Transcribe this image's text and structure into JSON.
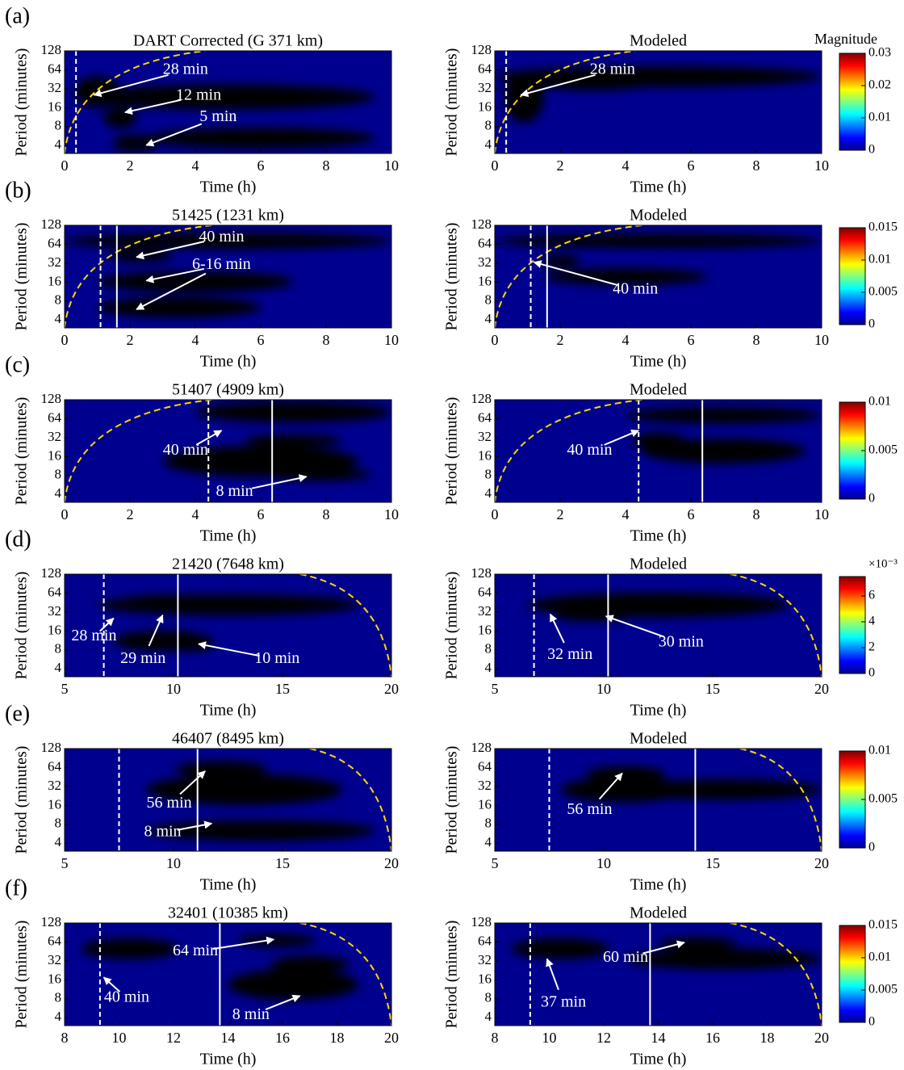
{
  "panel_labels": [
    "(a)",
    "(b)",
    "(c)",
    "(d)",
    "(e)",
    "(f)"
  ],
  "chart_data": [
    {
      "type": "heatmap",
      "title": "DART Corrected (G 371 km)",
      "xlabel": "Time (h)",
      "ylabel": "Period (minutes)",
      "xlim": [
        0,
        10
      ],
      "xticks": [
        0,
        2,
        4,
        6,
        8,
        10
      ],
      "ylim": [
        3,
        128
      ],
      "yticks": [
        4,
        8,
        16,
        32,
        64,
        128
      ],
      "ylog": true,
      "vlines": [
        {
          "x": 0.35,
          "style": "dashed"
        }
      ],
      "annotations": [
        "28 min",
        "12 min",
        "5 min"
      ]
    },
    {
      "type": "heatmap",
      "title": "Modeled",
      "xlabel": "Time (h)",
      "ylabel": "Period (minutes)",
      "xlim": [
        0,
        10
      ],
      "xticks": [
        0,
        2,
        4,
        6,
        8,
        10
      ],
      "ylim": [
        3,
        128
      ],
      "yticks": [
        4,
        8,
        16,
        32,
        64,
        128
      ],
      "ylog": true,
      "vlines": [
        {
          "x": 0.35,
          "style": "dashed"
        }
      ],
      "annotations": [
        "28 min"
      ],
      "colorbar": {
        "title": "Magnitude",
        "lim": [
          0,
          0.03
        ],
        "ticks": [
          0,
          0.01,
          0.02,
          0.03
        ]
      }
    },
    {
      "type": "heatmap",
      "title": "51425 (1231 km)",
      "xlabel": "Time (h)",
      "ylabel": "Period (minutes)",
      "xlim": [
        0,
        10
      ],
      "xticks": [
        0,
        2,
        4,
        6,
        8,
        10
      ],
      "ylim": [
        3,
        128
      ],
      "yticks": [
        4,
        8,
        16,
        32,
        64,
        128
      ],
      "ylog": true,
      "vlines": [
        {
          "x": 1.1,
          "style": "dashed"
        },
        {
          "x": 1.6,
          "style": "solid"
        }
      ],
      "annotations": [
        "40 min",
        "6-16 min"
      ]
    },
    {
      "type": "heatmap",
      "title": "Modeled",
      "xlabel": "Time (h)",
      "ylabel": "Period (minutes)",
      "xlim": [
        0,
        10
      ],
      "xticks": [
        0,
        2,
        4,
        6,
        8,
        10
      ],
      "ylim": [
        3,
        128
      ],
      "yticks": [
        4,
        8,
        16,
        32,
        64,
        128
      ],
      "ylog": true,
      "vlines": [
        {
          "x": 1.1,
          "style": "dashed"
        },
        {
          "x": 1.6,
          "style": "solid"
        }
      ],
      "annotations": [
        "40 min"
      ],
      "colorbar": {
        "lim": [
          0,
          0.015
        ],
        "ticks": [
          0,
          0.005,
          0.01,
          0.015
        ]
      }
    },
    {
      "type": "heatmap",
      "title": "51407 (4909 km)",
      "xlabel": "Time (h)",
      "ylabel": "Period (minutes)",
      "xlim": [
        0,
        10
      ],
      "xticks": [
        0,
        2,
        4,
        6,
        8,
        10
      ],
      "ylim": [
        3,
        128
      ],
      "yticks": [
        4,
        8,
        16,
        32,
        64,
        128
      ],
      "ylog": true,
      "vlines": [
        {
          "x": 4.4,
          "style": "dashed"
        },
        {
          "x": 6.35,
          "style": "solid"
        }
      ],
      "annotations": [
        "40 min",
        "8 min"
      ]
    },
    {
      "type": "heatmap",
      "title": "Modeled",
      "xlabel": "Time (h)",
      "ylabel": "Period (minutes)",
      "xlim": [
        0,
        10
      ],
      "xticks": [
        0,
        2,
        4,
        6,
        8,
        10
      ],
      "ylim": [
        3,
        128
      ],
      "yticks": [
        4,
        8,
        16,
        32,
        64,
        128
      ],
      "ylog": true,
      "vlines": [
        {
          "x": 4.4,
          "style": "dashed"
        },
        {
          "x": 6.35,
          "style": "solid"
        }
      ],
      "annotations": [
        "40 min"
      ],
      "colorbar": {
        "lim": [
          0,
          0.01
        ],
        "ticks": [
          0,
          0.005,
          0.01
        ]
      }
    },
    {
      "type": "heatmap",
      "title": "21420 (7648 km)",
      "xlabel": "Time (h)",
      "ylabel": "Period (minutes)",
      "xlim": [
        5,
        20
      ],
      "xticks": [
        5,
        10,
        15,
        20
      ],
      "ylim": [
        3,
        128
      ],
      "yticks": [
        4,
        8,
        16,
        32,
        64,
        128
      ],
      "ylog": true,
      "vlines": [
        {
          "x": 6.8,
          "style": "dashed"
        },
        {
          "x": 10.2,
          "style": "solid"
        }
      ],
      "annotations": [
        "28 min",
        "29 min",
        "10 min"
      ]
    },
    {
      "type": "heatmap",
      "title": "Modeled",
      "xlabel": "Time (h)",
      "ylabel": "Period (minutes)",
      "xlim": [
        5,
        20
      ],
      "xticks": [
        5,
        10,
        15,
        20
      ],
      "ylim": [
        3,
        128
      ],
      "yticks": [
        4,
        8,
        16,
        32,
        64,
        128
      ],
      "ylog": true,
      "vlines": [
        {
          "x": 6.8,
          "style": "dashed"
        },
        {
          "x": 10.2,
          "style": "solid"
        }
      ],
      "annotations": [
        "32 min",
        "30 min"
      ],
      "colorbar": {
        "scale_label": "×10⁻³",
        "lim": [
          0,
          7.5
        ],
        "ticks": [
          0,
          2,
          4,
          6
        ]
      }
    },
    {
      "type": "heatmap",
      "title": "46407 (8495 km)",
      "xlabel": "Time (h)",
      "ylabel": "Period (minutes)",
      "xlim": [
        5,
        20
      ],
      "xticks": [
        5,
        10,
        15,
        20
      ],
      "ylim": [
        3,
        128
      ],
      "yticks": [
        4,
        8,
        16,
        32,
        64,
        128
      ],
      "ylog": true,
      "vlines": [
        {
          "x": 7.5,
          "style": "dashed"
        },
        {
          "x": 11.1,
          "style": "solid"
        }
      ],
      "annotations": [
        "56 min",
        "8 min"
      ]
    },
    {
      "type": "heatmap",
      "title": "Modeled",
      "xlabel": "Time (h)",
      "ylabel": "Period (minutes)",
      "xlim": [
        5,
        20
      ],
      "xticks": [
        5,
        10,
        15,
        20
      ],
      "ylim": [
        3,
        128
      ],
      "yticks": [
        4,
        8,
        16,
        32,
        64,
        128
      ],
      "ylog": true,
      "vlines": [
        {
          "x": 7.5,
          "style": "dashed"
        },
        {
          "x": 14.2,
          "style": "solid"
        }
      ],
      "annotations": [
        "56 min"
      ],
      "colorbar": {
        "lim": [
          0,
          0.01
        ],
        "ticks": [
          0,
          0.005,
          0.01
        ]
      }
    },
    {
      "type": "heatmap",
      "title": "32401 (10385 km)",
      "xlabel": "Time (h)",
      "ylabel": "Period (minutes)",
      "xlim": [
        8,
        20
      ],
      "xticks": [
        8,
        10,
        12,
        14,
        16,
        18,
        20
      ],
      "ylim": [
        3,
        128
      ],
      "yticks": [
        4,
        8,
        16,
        32,
        64,
        128
      ],
      "ylog": true,
      "vlines": [
        {
          "x": 9.3,
          "style": "dashed"
        },
        {
          "x": 13.7,
          "style": "solid"
        }
      ],
      "annotations": [
        "64 min",
        "40 min",
        "8 min"
      ]
    },
    {
      "type": "heatmap",
      "title": "Modeled",
      "xlabel": "Time (h)",
      "ylabel": "Period (minutes)",
      "xlim": [
        8,
        20
      ],
      "xticks": [
        8,
        10,
        12,
        14,
        16,
        18,
        20
      ],
      "ylim": [
        3,
        128
      ],
      "yticks": [
        4,
        8,
        16,
        32,
        64,
        128
      ],
      "ylog": true,
      "vlines": [
        {
          "x": 9.3,
          "style": "dashed"
        },
        {
          "x": 13.7,
          "style": "solid"
        }
      ],
      "annotations": [
        "60 min",
        "37 min"
      ],
      "colorbar": {
        "lim": [
          0,
          0.015
        ],
        "ticks": [
          0,
          0.005,
          0.01,
          0.015
        ]
      }
    }
  ]
}
